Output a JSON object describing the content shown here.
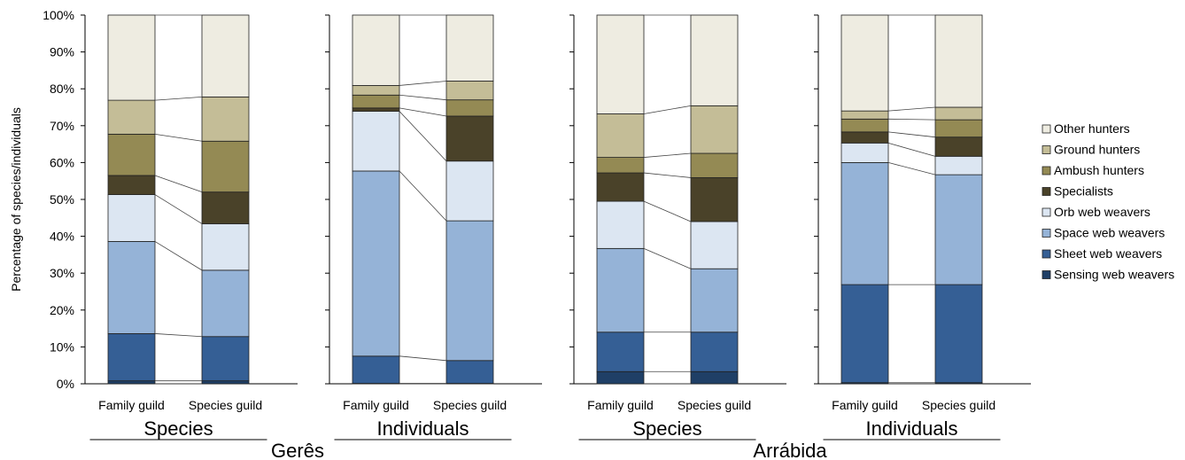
{
  "chart_data": {
    "type": "bar",
    "stacked": true,
    "normalized": true,
    "ylabel": "Percentage of species/individuals",
    "ylim": [
      0,
      100
    ],
    "yticks": [
      "0%",
      "10%",
      "20%",
      "30%",
      "40%",
      "50%",
      "60%",
      "70%",
      "80%",
      "90%",
      "100%"
    ],
    "categories": [
      "Family guild",
      "Species guild"
    ],
    "legend_position": "right",
    "guilds": [
      {
        "name": "Sensing web weavers",
        "color": "#1f3f66"
      },
      {
        "name": "Sheet web weavers",
        "color": "#355f95"
      },
      {
        "name": "Space web weavers",
        "color": "#95b3d7"
      },
      {
        "name": "Orb web weavers",
        "color": "#dce6f2"
      },
      {
        "name": "Specialists",
        "color": "#4a4229"
      },
      {
        "name": "Ambush hunters",
        "color": "#948a54"
      },
      {
        "name": "Ground hunters",
        "color": "#c4bd97"
      },
      {
        "name": "Other hunters",
        "color": "#eeece1"
      }
    ],
    "legend_order": [
      "Other hunters",
      "Ground hunters",
      "Ambush hunters",
      "Specialists",
      "Orb web weavers",
      "Space web weavers",
      "Sheet web weavers",
      "Sensing web weavers"
    ],
    "sites": [
      {
        "name": "Gerês",
        "panels": [
          "Species",
          "Individuals"
        ]
      },
      {
        "name": "Arrábida",
        "panels": [
          "Species",
          "Individuals"
        ]
      }
    ],
    "panels": [
      {
        "site": "Gerês",
        "group": "Species",
        "bars": [
          {
            "category": "Family guild",
            "values": [
              0.8,
              12.8,
              25,
              12.7,
              5.2,
              11.2,
              9.2,
              23.1
            ]
          },
          {
            "category": "Species guild",
            "values": [
              0.8,
              12,
              18,
              12.6,
              8.6,
              13.8,
              12,
              22.2
            ]
          }
        ]
      },
      {
        "site": "Gerês",
        "group": "Individuals",
        "bars": [
          {
            "category": "Family guild",
            "values": [
              0.1,
              7.4,
              50.2,
              16.2,
              0.9,
              3.5,
              2.6,
              19.1
            ]
          },
          {
            "category": "Species guild",
            "values": [
              0.1,
              6.2,
              37.9,
              16.2,
              12.2,
              4.4,
              5.1,
              17.9
            ]
          }
        ]
      },
      {
        "site": "Arrábida",
        "group": "Species",
        "bars": [
          {
            "category": "Family guild",
            "values": [
              3.3,
              10.7,
              22.7,
              12.8,
              7.7,
              4.2,
              11.8,
              26.8
            ]
          },
          {
            "category": "Species guild",
            "values": [
              3.3,
              10.7,
              17.2,
              12.8,
              11.9,
              6.6,
              12.9,
              24.6
            ]
          }
        ]
      },
      {
        "site": "Arrábida",
        "group": "Individuals",
        "bars": [
          {
            "category": "Family guild",
            "values": [
              0.3,
              26.6,
              33.1,
              5.3,
              3,
              3.5,
              2.2,
              26
            ]
          },
          {
            "category": "Species guild",
            "values": [
              0.3,
              26.6,
              29.8,
              5,
              5.2,
              4.7,
              3.4,
              25
            ]
          }
        ]
      }
    ]
  }
}
